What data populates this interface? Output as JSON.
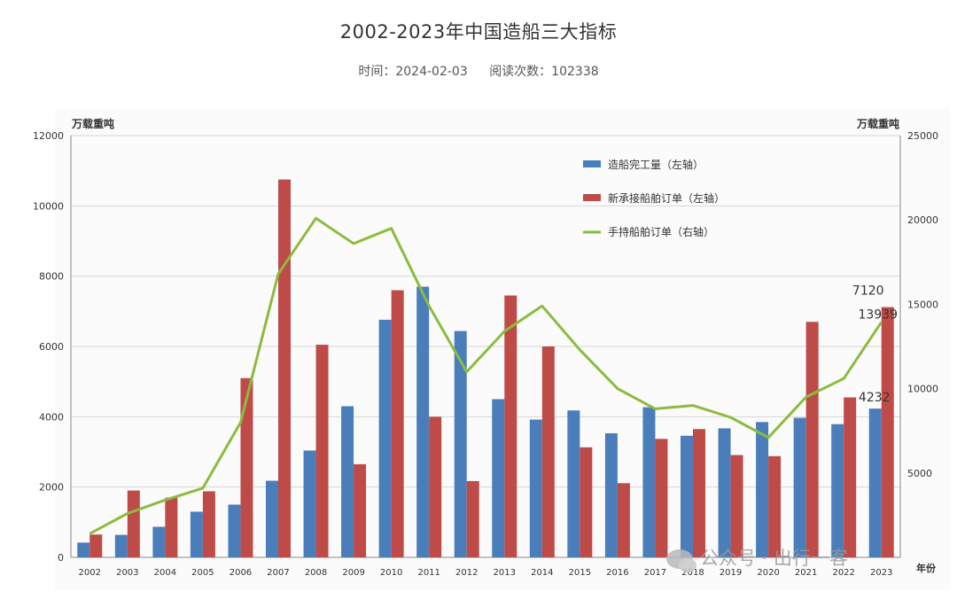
{
  "page": {
    "title": "2002-2023年中国造船三大指标",
    "time_label": "时间：2024-02-03",
    "reads_label": "阅读次数：102338"
  },
  "watermark": {
    "text": "公众号 · 出行一客",
    "icon": "wechat-icon"
  },
  "chart_data": {
    "type": "bar",
    "title": "",
    "left_axis_unit": "万载重吨",
    "right_axis_unit": "万载重吨",
    "x_axis_unit": "年份",
    "categories": [
      "2002",
      "2003",
      "2004",
      "2005",
      "2006",
      "2007",
      "2008",
      "2009",
      "2010",
      "2011",
      "2012",
      "2013",
      "2014",
      "2015",
      "2016",
      "2017",
      "2018",
      "2019",
      "2020",
      "2021",
      "2022",
      "2023"
    ],
    "left_ylim": [
      0,
      12000
    ],
    "left_ticks": [
      "0",
      "2000",
      "4000",
      "6000",
      "8000",
      "10000",
      "12000"
    ],
    "right_ylim": [
      0,
      25000
    ],
    "right_ticks": [
      "5000",
      "10000",
      "15000",
      "20000",
      "25000"
    ],
    "grid": true,
    "legend_position": "top-right",
    "series": [
      {
        "name": "造船完工量（左轴）",
        "type": "bar",
        "axis": "left",
        "color": "#4a7ebb",
        "values": [
          420,
          640,
          870,
          1300,
          1500,
          2180,
          3040,
          4300,
          6760,
          7700,
          6440,
          4500,
          3920,
          4180,
          3530,
          4270,
          3460,
          3670,
          3850,
          3970,
          3790,
          4232
        ]
      },
      {
        "name": "新承接船舶订单（左轴）",
        "type": "bar",
        "axis": "left",
        "color": "#be4b48",
        "values": [
          650,
          1900,
          1700,
          1880,
          5100,
          10750,
          6050,
          2650,
          7600,
          4000,
          2170,
          7450,
          6000,
          3130,
          2110,
          3370,
          3650,
          2910,
          2880,
          6700,
          4550,
          7120
        ]
      },
      {
        "name": "手持船舶订单（右轴）",
        "type": "line",
        "axis": "right",
        "color": "#8dbb3e",
        "values": [
          1400,
          2600,
          3400,
          4100,
          8000,
          16800,
          20100,
          18600,
          19500,
          14900,
          11000,
          13400,
          14900,
          12300,
          10000,
          8800,
          9000,
          8300,
          7100,
          9500,
          10600,
          13939
        ]
      }
    ],
    "data_labels": [
      {
        "series": 1,
        "index": 21,
        "text": "7120"
      },
      {
        "series": 2,
        "index": 21,
        "text": "13939"
      },
      {
        "series": 0,
        "index": 21,
        "text": "4232"
      }
    ]
  }
}
